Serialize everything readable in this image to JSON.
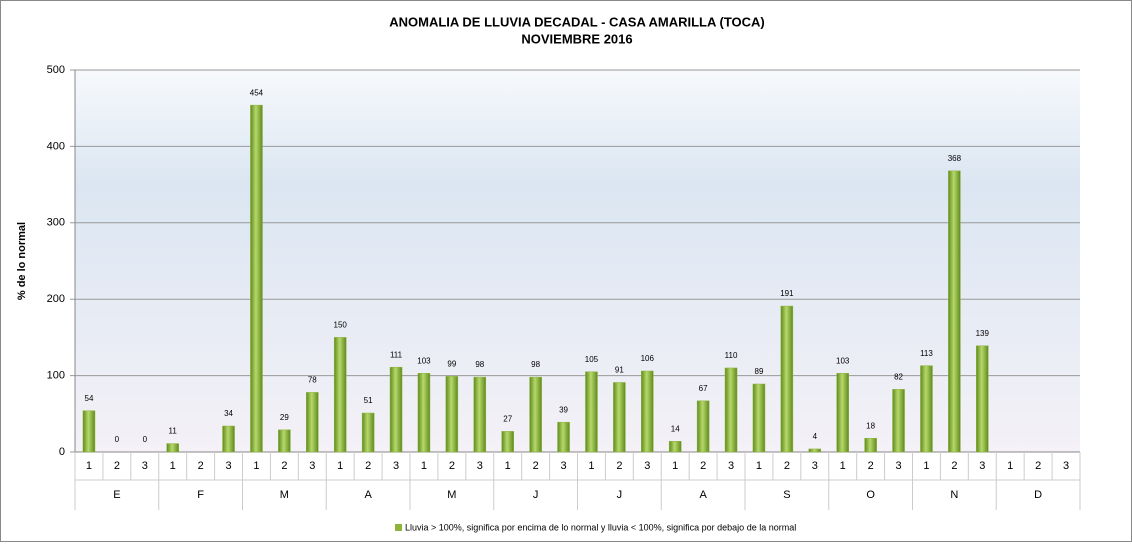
{
  "chart_data": {
    "type": "bar",
    "title": "ANOMALIA DE LLUVIA DECADAL - CASA AMARILLA  (TOCA)",
    "subtitle": "NOVIEMBRE  2016",
    "y_label": "% de lo normal",
    "categories": [
      "1",
      "2",
      "3",
      "1",
      "2",
      "3",
      "1",
      "2",
      "3",
      "1",
      "2",
      "3",
      "1",
      "2",
      "3",
      "1",
      "2",
      "3",
      "1",
      "2",
      "3",
      "1",
      "2",
      "3",
      "1",
      "2",
      "3",
      "1",
      "2",
      "3",
      "1",
      "2",
      "3",
      "1",
      "2",
      "3"
    ],
    "groups": [
      "E",
      "F",
      "M",
      "A",
      "M",
      "J",
      "J",
      "A",
      "S",
      "O",
      "N",
      "D"
    ],
    "series": [
      {
        "name": "Lluvia > 100%, significa por encima de lo normal y lluvia < 100%, significa por debajo de la normal",
        "color": "#8db33a",
        "values": [
          54,
          0,
          0,
          11,
          null,
          34,
          454,
          29,
          78,
          150,
          51,
          111,
          103,
          99,
          98,
          27,
          98,
          39,
          105,
          91,
          106,
          14,
          67,
          110,
          89,
          191,
          4,
          103,
          18,
          82,
          113,
          368,
          139,
          null,
          null,
          null
        ]
      }
    ],
    "ylim": [
      0,
      500
    ],
    "yticks": [
      0,
      100,
      200,
      300,
      400,
      500
    ],
    "grid": true
  }
}
